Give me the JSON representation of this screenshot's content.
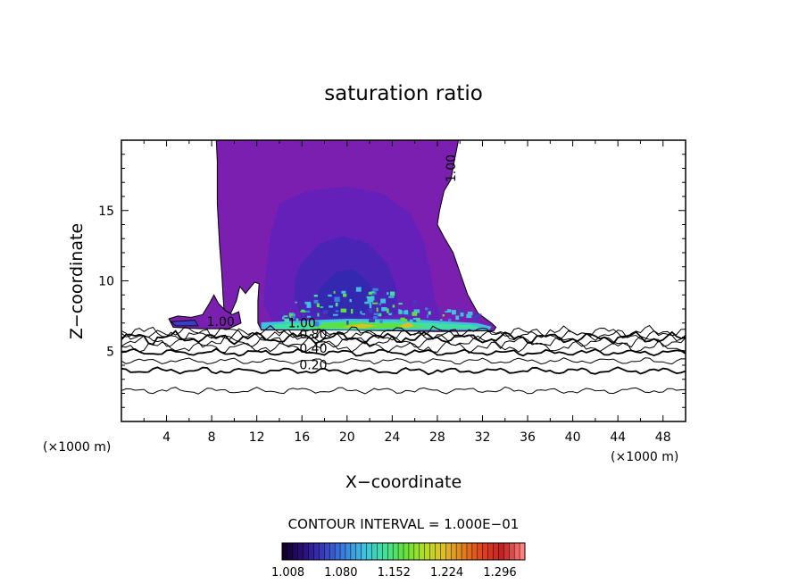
{
  "chart_data": {
    "type": "contour",
    "title": "saturation ratio",
    "xlabel": "X−coordinate",
    "ylabel": "Z−coordinate",
    "x_unit_left": "(×1000 m)",
    "x_unit_right": "(×1000 m)",
    "xlim": [
      0,
      50
    ],
    "ylim": [
      0,
      20
    ],
    "x_ticks": [
      4,
      8,
      12,
      16,
      20,
      24,
      28,
      32,
      36,
      40,
      44,
      48
    ],
    "x_tick_labels": [
      "4",
      "8",
      "12",
      "16",
      "20",
      "24",
      "28",
      "32",
      "36",
      "40",
      "44",
      "48"
    ],
    "y_ticks": [
      5,
      10,
      15
    ],
    "y_tick_labels": [
      "5",
      "10",
      "15"
    ],
    "contour_labels": [
      {
        "text": "1.00",
        "x": 29.6,
        "y": 18.0,
        "rotate": -90
      },
      {
        "text": "1.00",
        "x": 8.8,
        "y": 6.8,
        "rotate": 0
      },
      {
        "text": "1.00",
        "x": 16.0,
        "y": 6.7,
        "rotate": 0
      },
      {
        "text": "0.80",
        "x": 17.0,
        "y": 5.9,
        "rotate": 0
      },
      {
        "text": "0.40",
        "x": 17.0,
        "y": 4.9,
        "rotate": 0
      },
      {
        "text": "0.20",
        "x": 17.0,
        "y": 3.7,
        "rotate": 0
      }
    ],
    "contour_lines_z": [
      2.2,
      3.6,
      4.3,
      4.9,
      5.3,
      5.7,
      5.95,
      6.15,
      6.35
    ],
    "colorbar": {
      "interval_text": "CONTOUR INTERVAL = 1.000E−01",
      "tick_labels": [
        "1.008",
        "1.080",
        "1.152",
        "1.224",
        "1.296"
      ],
      "min": 1.0,
      "max": 1.33,
      "colors": [
        "#100030",
        "#2a1080",
        "#3a3fc0",
        "#3a80e0",
        "#40c0e0",
        "#40e0a0",
        "#60e040",
        "#b0e020",
        "#e0c020",
        "#e08020",
        "#e04020",
        "#c02020",
        "#ff8080"
      ]
    },
    "colors": {
      "outer": "#7a1fb0",
      "mid": "#6420b8",
      "inner": "#4a25b5",
      "core": "#3428b0"
    }
  }
}
